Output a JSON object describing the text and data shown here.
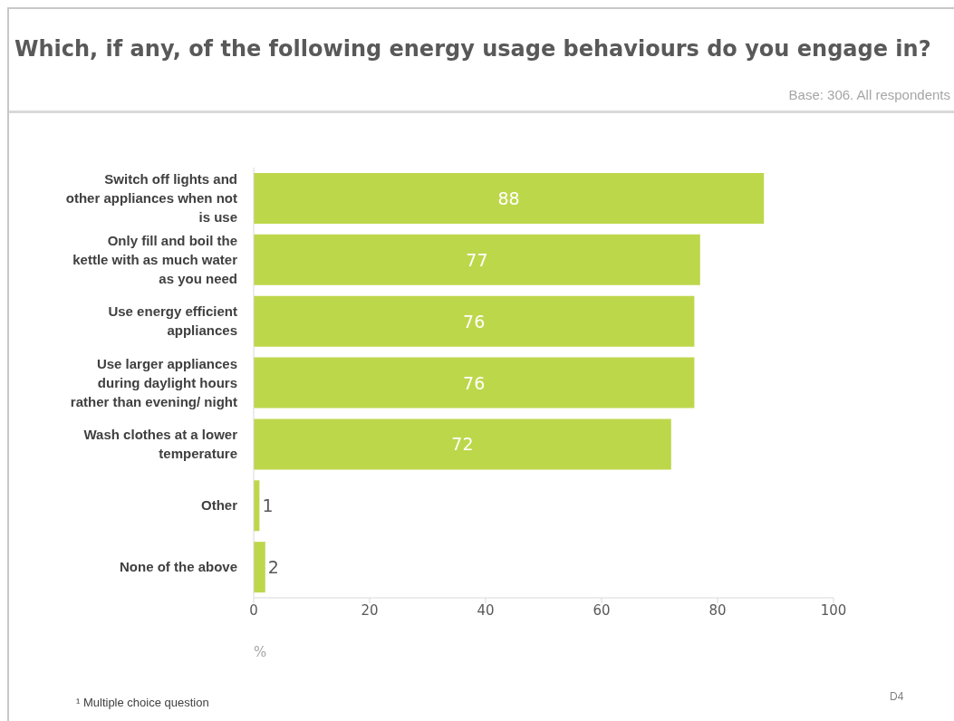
{
  "chart_data": {
    "type": "bar",
    "orientation": "horizontal",
    "title": "Which, if any, of the following energy usage behaviours do you engage in?",
    "subtitle": "Base: 306. All respondents",
    "xlabel": "%",
    "categories": [
      "Switch off lights and other appliances when not is use",
      "Only fill and boil the kettle with as much water as you need",
      "Use energy efficient appliances",
      "Use larger appliances during daylight hours rather than evening/ night",
      "Wash clothes at a lower temperature",
      "Other",
      "None of the above"
    ],
    "values": [
      88,
      77,
      76,
      76,
      72,
      1,
      2
    ],
    "color": "#bdd74b",
    "xlim": [
      0,
      100
    ],
    "xticks": [
      0,
      20,
      40,
      60,
      80,
      100
    ],
    "grid": false,
    "legend": false,
    "data_labels": true,
    "annotations": [
      "¹ Multiple choice question",
      "D4"
    ]
  }
}
